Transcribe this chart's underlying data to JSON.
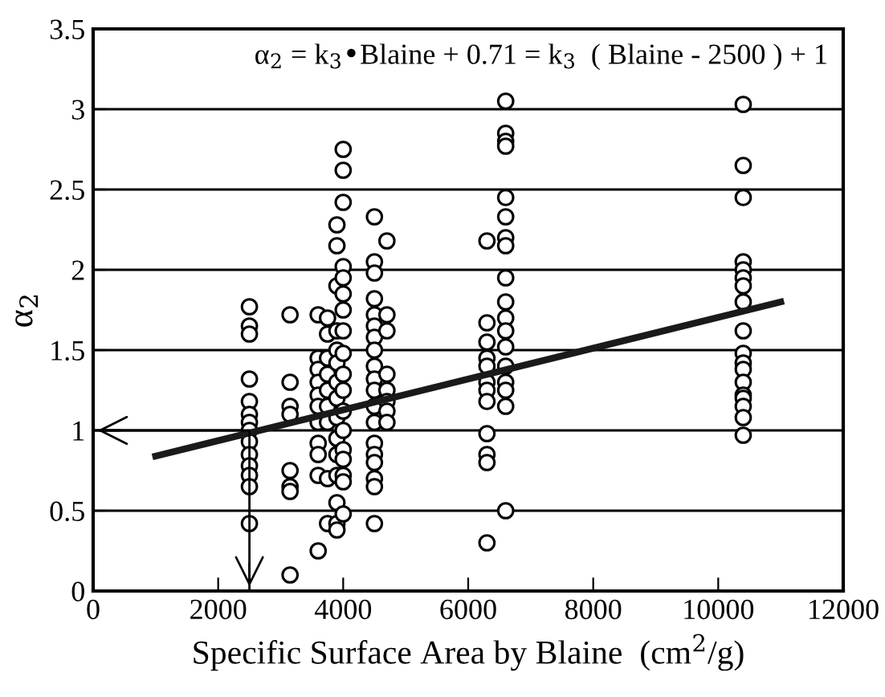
{
  "chart_data": {
    "type": "scatter",
    "xlabel": "Specific Surface Area by Blaine  (cm$^{2}$/g)",
    "ylabel": "α$_{2}$",
    "annotations": [
      "α$_{2}$ = k$_{3}$•Blaine + 0.71 = k$_{3}$  ( Blaine - 2500 ) + 1"
    ],
    "xlim": [
      0,
      12000
    ],
    "xticks": [
      0,
      2000,
      4000,
      6000,
      8000,
      10000,
      12000
    ],
    "ylim": [
      0,
      3.5
    ],
    "yticks": [
      0,
      0.5,
      1,
      1.5,
      2,
      2.5,
      3,
      3.5
    ],
    "grid": "y",
    "marker": "circle",
    "legend": false,
    "series": [
      {
        "color": "#000000",
        "x": [
          2500,
          2500,
          2500,
          2500,
          2500,
          2500,
          2500,
          2500,
          2500,
          2500,
          2500,
          2500,
          2500,
          2500,
          3150,
          3150,
          3150,
          3150,
          3150,
          3150,
          3150,
          3150,
          3600,
          3600,
          3600,
          3600,
          3600,
          3600,
          3600,
          3600,
          3600,
          3600,
          3600,
          3750,
          3750,
          3750,
          3750,
          3750,
          3750,
          3750,
          3750,
          3750,
          3900,
          3900,
          3900,
          3900,
          3900,
          3900,
          3900,
          3900,
          3900,
          3900,
          3900,
          3900,
          3900,
          3900,
          3900,
          4000,
          4000,
          4000,
          4000,
          4000,
          4000,
          4000,
          4000,
          4000,
          4000,
          4000,
          4000,
          4000,
          4000,
          4000,
          4000,
          4000,
          4000,
          4500,
          4500,
          4500,
          4500,
          4500,
          4500,
          4500,
          4500,
          4500,
          4500,
          4500,
          4500,
          4500,
          4500,
          4500,
          4500,
          4500,
          4500,
          4500,
          4700,
          4700,
          4700,
          4700,
          4700,
          4700,
          4700,
          4700,
          6300,
          6300,
          6300,
          6300,
          6300,
          6300,
          6300,
          6300,
          6300,
          6300,
          6300,
          6300,
          6600,
          6600,
          6600,
          6600,
          6600,
          6600,
          6600,
          6600,
          6600,
          6600,
          6600,
          6600,
          6600,
          6600,
          6600,
          6600,
          6600,
          6600,
          10400,
          10400,
          10400,
          10400,
          10400,
          10400,
          10400,
          10400,
          10400,
          10400,
          10400,
          10400,
          10400,
          10400,
          10400,
          10400,
          10400,
          10400
        ],
        "values": [
          1.77,
          1.65,
          1.6,
          1.32,
          1.18,
          1.1,
          1.05,
          1.0,
          0.93,
          0.85,
          0.78,
          0.72,
          0.65,
          0.42,
          1.72,
          1.3,
          1.15,
          1.1,
          0.75,
          0.65,
          0.62,
          0.1,
          0.25,
          1.72,
          1.45,
          1.38,
          1.3,
          1.22,
          1.15,
          1.05,
          0.92,
          0.85,
          0.72,
          1.7,
          1.6,
          1.45,
          1.35,
          1.25,
          1.15,
          1.05,
          0.7,
          0.42,
          2.28,
          2.15,
          1.9,
          1.62,
          1.5,
          1.42,
          1.3,
          1.2,
          1.08,
          0.95,
          0.85,
          0.72,
          0.55,
          0.42,
          0.38,
          2.75,
          2.62,
          2.42,
          2.02,
          1.95,
          1.85,
          1.75,
          1.62,
          1.48,
          1.35,
          1.25,
          1.12,
          1.0,
          0.88,
          0.82,
          0.72,
          0.68,
          0.48,
          2.33,
          2.05,
          1.98,
          1.82,
          1.72,
          1.65,
          1.58,
          1.5,
          1.4,
          1.32,
          1.25,
          1.15,
          1.05,
          0.92,
          0.85,
          0.8,
          0.7,
          0.65,
          0.42,
          2.18,
          1.72,
          1.62,
          1.35,
          1.25,
          1.18,
          1.12,
          1.05,
          2.18,
          1.67,
          1.55,
          1.45,
          1.4,
          1.3,
          1.25,
          1.18,
          0.98,
          0.85,
          0.8,
          0.3,
          3.05,
          2.85,
          2.8,
          2.77,
          2.45,
          2.33,
          2.2,
          2.15,
          1.95,
          1.8,
          1.7,
          1.62,
          1.52,
          1.4,
          1.3,
          1.25,
          1.15,
          0.5,
          3.03,
          2.65,
          2.45,
          2.05,
          2.0,
          1.95,
          1.9,
          1.8,
          1.62,
          1.48,
          1.42,
          1.38,
          1.3,
          1.22,
          1.2,
          1.15,
          1.08,
          0.97
        ]
      },
      {
        "type": "line",
        "marker": "none",
        "color": "#1a1a1a",
        "x": [
          1000,
          11000
        ],
        "values": [
          0.84,
          1.8
        ]
      },
      {
        "type": "line",
        "marker": "none",
        "color": "#000000",
        "x": [
          0,
          2500,
          2500
        ],
        "values": [
          1,
          1,
          0
        ]
      }
    ]
  }
}
